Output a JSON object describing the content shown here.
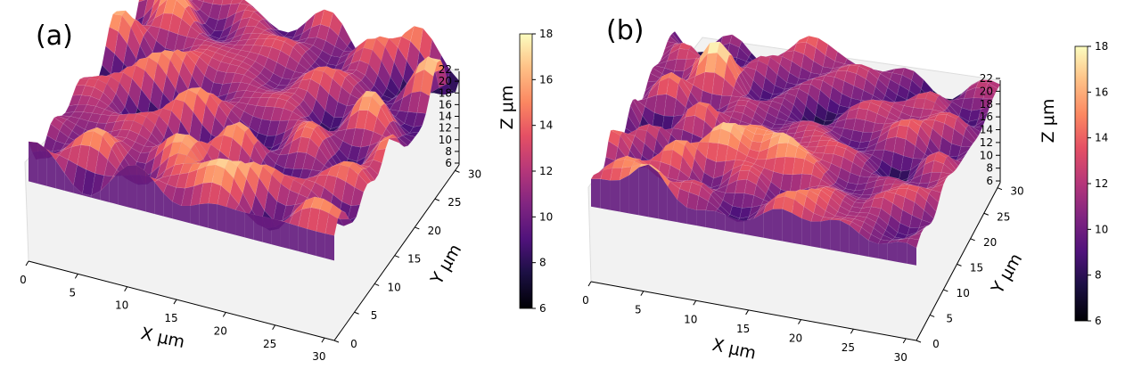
{
  "chart_data": [
    {
      "type": "surface3d",
      "panel_label": "(a)",
      "xlabel": "X μm",
      "ylabel": "Y μm",
      "zlabel": "Z μm",
      "xticks": [
        0,
        5,
        10,
        15,
        20,
        25,
        30
      ],
      "yticks": [
        0,
        5,
        10,
        15,
        20,
        25,
        30
      ],
      "zticks": [
        6,
        8,
        10,
        12,
        14,
        16,
        18,
        20,
        22
      ],
      "xlim": [
        0,
        31
      ],
      "ylim": [
        0,
        31
      ],
      "zlim": [
        6,
        22
      ],
      "colormap": "magma",
      "colorbar": {
        "min": 6,
        "max": 18,
        "ticks": [
          6,
          8,
          10,
          12,
          14,
          16,
          18
        ]
      },
      "grid": true,
      "surface": {
        "mean_height": 11.5,
        "height_range": [
          6.5,
          17.5
        ],
        "roughness": "moderate"
      }
    },
    {
      "type": "surface3d",
      "panel_label": "(b)",
      "xlabel": "X μm",
      "ylabel": "Y μm",
      "zlabel": "Z μm",
      "xticks": [
        0,
        5,
        10,
        15,
        20,
        25,
        30
      ],
      "yticks": [
        0,
        5,
        10,
        15,
        20,
        25,
        30
      ],
      "zticks": [
        6,
        8,
        10,
        12,
        14,
        16,
        18,
        20,
        22
      ],
      "xlim": [
        0,
        31
      ],
      "ylim": [
        0,
        31
      ],
      "zlim": [
        6,
        22
      ],
      "colormap": "magma",
      "colorbar": {
        "min": 6,
        "max": 18,
        "ticks": [
          6,
          8,
          10,
          12,
          14,
          16,
          18
        ]
      },
      "grid": true,
      "surface": {
        "mean_height": 12,
        "height_range": [
          6.5,
          18.5
        ],
        "roughness": "high, sharp peaks"
      }
    }
  ]
}
